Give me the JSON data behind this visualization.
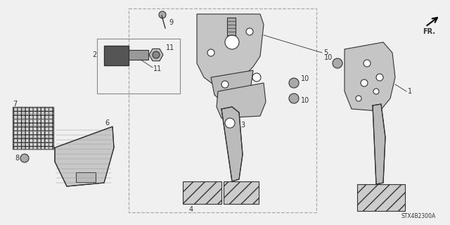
{
  "bg_color": "#f0f0f0",
  "line_color": "#333333",
  "text_color": "#333333",
  "part_code": "STX4B2300A",
  "fig_w": 6.4,
  "fig_h": 3.2,
  "dpi": 100
}
